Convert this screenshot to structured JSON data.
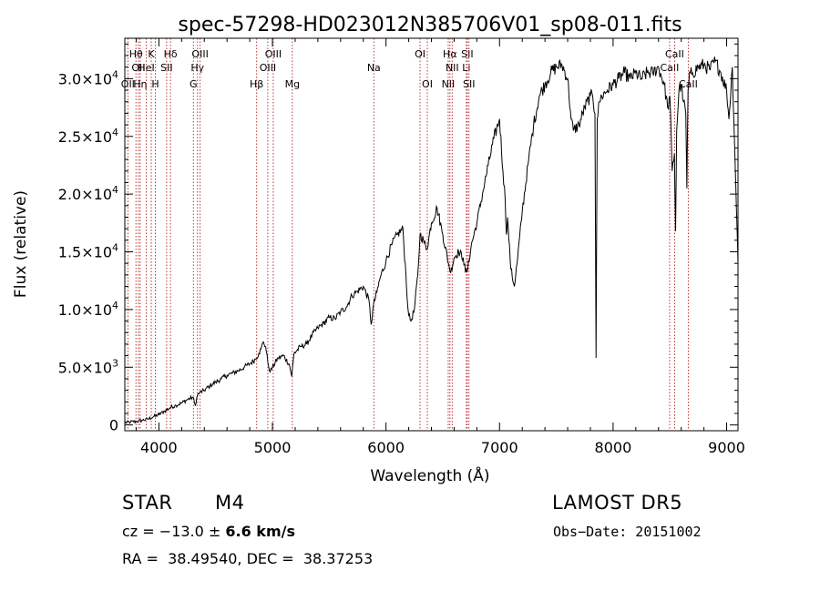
{
  "chart_data": {
    "type": "line",
    "title": "spec-57298-HD023012N385706V01_sp08-011.fits",
    "xlabel": "Wavelength (Å)",
    "ylabel": "Flux (relative)",
    "xlim": [
      3700,
      9100
    ],
    "ylim": [
      -500,
      33500
    ],
    "x_ticks": [
      4000,
      5000,
      6000,
      7000,
      8000,
      9000
    ],
    "y_ticks": [
      {
        "value": 0,
        "mantissa": "0",
        "exp": ""
      },
      {
        "value": 5000,
        "mantissa": "5.0×10",
        "exp": "3"
      },
      {
        "value": 10000,
        "mantissa": "1.0×10",
        "exp": "4"
      },
      {
        "value": 15000,
        "mantissa": "1.5×10",
        "exp": "4"
      },
      {
        "value": 20000,
        "mantissa": "2.0×10",
        "exp": "4"
      },
      {
        "value": 25000,
        "mantissa": "2.5×10",
        "exp": "4"
      },
      {
        "value": 30000,
        "mantissa": "3.0×10",
        "exp": "4"
      }
    ],
    "line_color": "#000000",
    "marker_color": "#b22222",
    "spectrum": {
      "x": [
        3700,
        3750,
        3800,
        3850,
        3900,
        3950,
        4000,
        4050,
        4100,
        4150,
        4200,
        4250,
        4300,
        4320,
        4340,
        4360,
        4400,
        4450,
        4500,
        4550,
        4600,
        4650,
        4700,
        4750,
        4800,
        4850,
        4880,
        4900,
        4920,
        4940,
        4960,
        4980,
        5000,
        5050,
        5100,
        5150,
        5170,
        5190,
        5250,
        5300,
        5350,
        5400,
        5450,
        5500,
        5550,
        5600,
        5650,
        5700,
        5750,
        5800,
        5850,
        5870,
        5890,
        5920,
        5950,
        6000,
        6050,
        6100,
        6150,
        6160,
        6170,
        6180,
        6200,
        6220,
        6250,
        6280,
        6300,
        6330,
        6360,
        6400,
        6450,
        6500,
        6550,
        6570,
        6600,
        6640,
        6680,
        6700,
        6720,
        6750,
        6800,
        6850,
        6900,
        6950,
        7000,
        7030,
        7050,
        7060,
        7070,
        7100,
        7130,
        7160,
        7200,
        7250,
        7300,
        7350,
        7400,
        7450,
        7500,
        7550,
        7600,
        7630,
        7650,
        7700,
        7750,
        7800,
        7820,
        7840,
        7850,
        7860,
        7880,
        7900,
        7950,
        8000,
        8050,
        8100,
        8150,
        8200,
        8250,
        8300,
        8350,
        8400,
        8450,
        8480,
        8500,
        8520,
        8540,
        8550,
        8560,
        8580,
        8600,
        8620,
        8640,
        8650,
        8660,
        8680,
        8700,
        8750,
        8800,
        8850,
        8900,
        8950,
        9000,
        9020,
        9050,
        9080,
        9100
      ],
      "y": [
        200,
        250,
        300,
        400,
        500,
        700,
        900,
        1200,
        1500,
        1700,
        1900,
        2200,
        2400,
        1700,
        2600,
        2800,
        3000,
        3400,
        3700,
        4000,
        4300,
        4500,
        4700,
        5000,
        5300,
        5700,
        6200,
        6600,
        7200,
        6800,
        5400,
        4600,
        5000,
        5800,
        6000,
        5200,
        4200,
        6200,
        6800,
        7000,
        7800,
        8400,
        8800,
        9300,
        9200,
        9800,
        10200,
        11200,
        11600,
        12000,
        10800,
        8700,
        10400,
        11500,
        12800,
        14200,
        15600,
        16500,
        17000,
        15000,
        14000,
        12000,
        9500,
        9000,
        10000,
        13000,
        16500,
        16000,
        15200,
        17500,
        18800,
        16500,
        14000,
        13200,
        14500,
        15000,
        14500,
        13200,
        13500,
        15500,
        17500,
        20000,
        22500,
        24800,
        26500,
        22000,
        19500,
        16500,
        18000,
        13500,
        12000,
        14500,
        18500,
        22500,
        26000,
        28500,
        29500,
        30500,
        31000,
        31200,
        30000,
        26500,
        25500,
        26000,
        27500,
        28500,
        28500,
        27000,
        5800,
        26500,
        28000,
        28500,
        29000,
        29500,
        30000,
        30500,
        30000,
        30500,
        30000,
        30500,
        30500,
        31000,
        29500,
        27500,
        28500,
        22000,
        23500,
        16800,
        25500,
        29000,
        29500,
        28000,
        27000,
        20500,
        29000,
        30500,
        30500,
        31000,
        31200,
        30800,
        31500,
        30500,
        29000,
        26500,
        31000,
        21000,
        14000
      ]
    },
    "line_markers": [
      {
        "wl": 3727,
        "label": "OII",
        "row": 3
      },
      {
        "wl": 3798,
        "label": "Hθ",
        "row": 1
      },
      {
        "wl": 3820,
        "label": "OII",
        "row": 2
      },
      {
        "wl": 3835,
        "label": "Hη",
        "row": 3
      },
      {
        "wl": 3889,
        "label": "HeI",
        "row": 2
      },
      {
        "wl": 3933,
        "label": "K",
        "row": 1
      },
      {
        "wl": 3969,
        "label": "H",
        "row": 3
      },
      {
        "wl": 4068,
        "label": "SII",
        "row": 2
      },
      {
        "wl": 4102,
        "label": "Hδ",
        "row": 1
      },
      {
        "wl": 4304,
        "label": "G",
        "row": 3
      },
      {
        "wl": 4340,
        "label": "Hγ",
        "row": 2
      },
      {
        "wl": 4363,
        "label": "OIII",
        "row": 1
      },
      {
        "wl": 4861,
        "label": "Hβ",
        "row": 3
      },
      {
        "wl": 4959,
        "label": "OIII",
        "row": 2
      },
      {
        "wl": 5007,
        "label": "OIII",
        "row": 1
      },
      {
        "wl": 5175,
        "label": "Mg",
        "row": 3
      },
      {
        "wl": 5893,
        "label": "Na",
        "row": 2
      },
      {
        "wl": 6300,
        "label": "OI",
        "row": 1
      },
      {
        "wl": 6364,
        "label": "OI",
        "row": 3
      },
      {
        "wl": 6548,
        "label": "NII",
        "row": 3
      },
      {
        "wl": 6563,
        "label": "Hα",
        "row": 1
      },
      {
        "wl": 6583,
        "label": "NII",
        "row": 2
      },
      {
        "wl": 6708,
        "label": "Li",
        "row": 2
      },
      {
        "wl": 6716,
        "label": "SII",
        "row": 1
      },
      {
        "wl": 6731,
        "label": "SII",
        "row": 3
      },
      {
        "wl": 8498,
        "label": "CaII",
        "row": 2
      },
      {
        "wl": 8542,
        "label": "CaII",
        "row": 1
      },
      {
        "wl": 8662,
        "label": "CaII",
        "row": 3
      }
    ]
  },
  "info": {
    "object_type": "STAR",
    "subclass": "M4",
    "survey": "LAMOST DR5",
    "cz_label": "cz = ",
    "cz_value": "−13.0",
    "cz_pm": " ± ",
    "cz_err": "6.6",
    "cz_unit": " km/s",
    "obs_date": "Obs−Date: 20151002",
    "coords": "RA =  38.49540, DEC =  38.37253"
  }
}
